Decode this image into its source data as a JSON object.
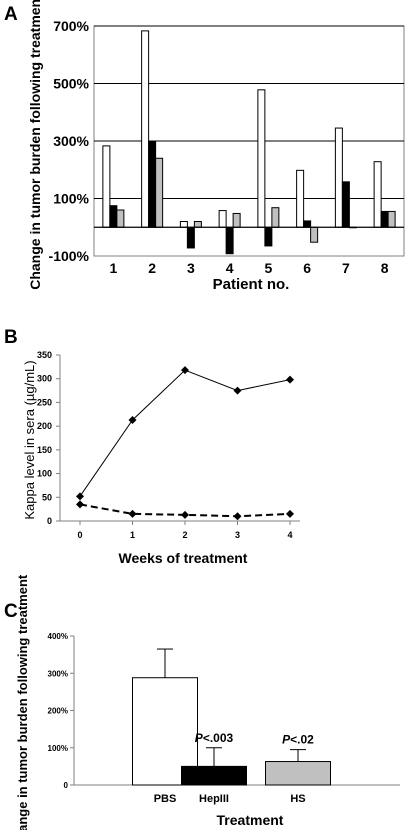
{
  "colors": {
    "pbs": "#ffffff",
    "hepIII": "#000000",
    "hs": "#c0c0c0",
    "axis": "#000000",
    "grid": "#000000"
  },
  "panels": {
    "a": {
      "letter": "A"
    },
    "b": {
      "letter": "B"
    },
    "c": {
      "letter": "C"
    }
  },
  "chart_data": [
    {
      "type": "bar",
      "panel": "A",
      "title": "",
      "xlabel": "Patient no.",
      "ylabel": "Change in tumor burden following treatment",
      "ylim": [
        -100,
        700
      ],
      "grid": true,
      "ytick_values": [
        -100,
        100,
        300,
        500,
        700
      ],
      "ytick_labels": [
        "-100%",
        "100%",
        "300%",
        "500%",
        "700%"
      ],
      "categories": [
        "1",
        "2",
        "3",
        "4",
        "5",
        "6",
        "7",
        "8"
      ],
      "series": [
        {
          "color": "#ffffff",
          "values": [
            283,
            683,
            20,
            58,
            478,
            198,
            345,
            228
          ]
        },
        {
          "color": "#000000",
          "values": [
            75,
            298,
            -72,
            -92,
            -65,
            22,
            158,
            55
          ]
        },
        {
          "color": "#c0c0c0",
          "values": [
            60,
            240,
            20,
            48,
            68,
            -52,
            0,
            55
          ]
        }
      ]
    },
    {
      "type": "line",
      "panel": "B",
      "title": "",
      "xlabel": "Weeks of treatment",
      "ylabel": "Kappa level in sera (µg/mL)",
      "xlim": [
        0,
        4
      ],
      "ylim": [
        0,
        350
      ],
      "grid": false,
      "xticks": [
        0,
        1,
        2,
        3,
        4
      ],
      "yticks": [
        0,
        50,
        100,
        150,
        200,
        250,
        300,
        350
      ],
      "series": [
        {
          "style": "solid",
          "x": [
            0,
            1,
            2,
            3,
            4
          ],
          "y": [
            52,
            213,
            318,
            275,
            298
          ]
        },
        {
          "style": "dashed",
          "x": [
            0,
            1,
            2,
            3,
            4
          ],
          "y": [
            35,
            15,
            13,
            10,
            15
          ]
        }
      ]
    },
    {
      "type": "bar",
      "panel": "C",
      "title": "",
      "xlabel": "Treatment",
      "ylabel": "Change in tumor burden following treatment",
      "ylim": [
        0,
        400
      ],
      "grid": false,
      "ytick_values": [
        0,
        100,
        200,
        300,
        400
      ],
      "ytick_labels": [
        "0",
        "100%",
        "200%",
        "300%",
        "400%"
      ],
      "categories": [
        "PBS",
        "HepIII",
        "HS"
      ],
      "values": [
        288,
        50,
        63
      ],
      "error": [
        77,
        50,
        32
      ],
      "colors": [
        "#ffffff",
        "#000000",
        "#c0c0c0"
      ],
      "annotations": [
        null,
        "P<.003",
        "P<.02"
      ]
    }
  ]
}
